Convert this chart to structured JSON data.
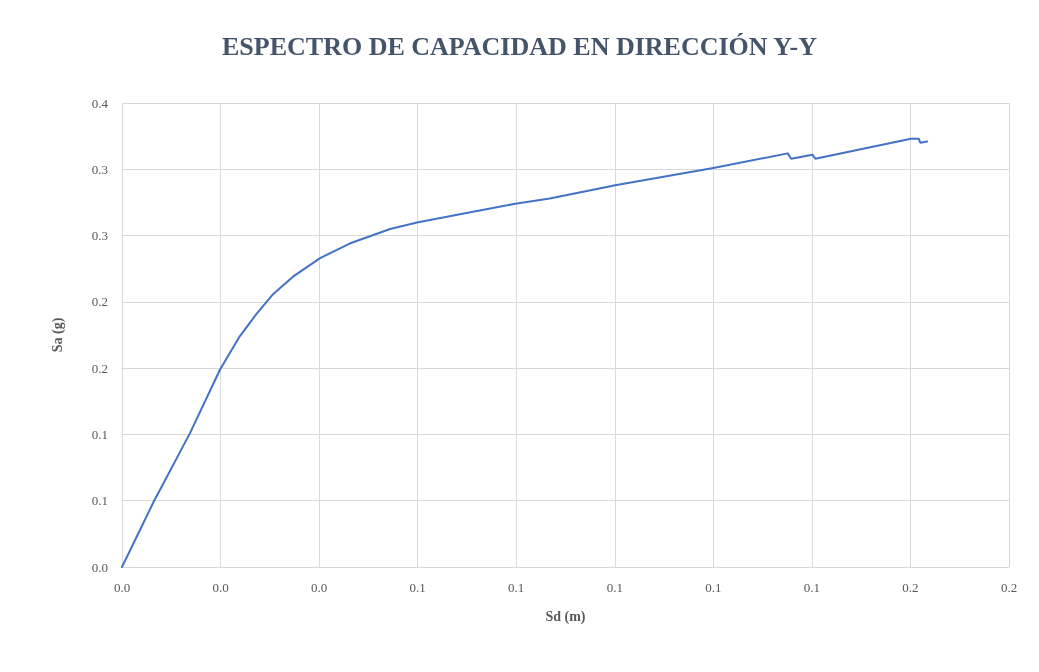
{
  "chart_data": {
    "type": "line",
    "title": "ESPECTRO DE CAPACIDAD EN DIRECCIÓN Y-Y",
    "xlabel": "Sd (m)",
    "ylabel": "Sa (g)",
    "series": [
      {
        "color": "#4472c4",
        "x": [
          0,
          0.0064,
          0.0138,
          0.0199,
          0.0239,
          0.0273,
          0.0307,
          0.0347,
          0.0402,
          0.0462,
          0.0544,
          0.0601,
          0.0699,
          0.0798,
          0.0868,
          0.1001,
          0.12,
          0.1351,
          0.1358,
          0.1401,
          0.1407,
          0.1601,
          0.1617,
          0.162,
          0.1634
        ],
        "values": [
          0,
          0.049,
          0.101,
          0.149,
          0.174,
          0.191,
          0.206,
          0.219,
          0.233,
          0.244,
          0.255,
          0.26,
          0.267,
          0.274,
          0.278,
          0.288,
          0.301,
          0.312,
          0.308,
          0.311,
          0.308,
          0.323,
          0.323,
          0.32,
          0.321
        ]
      }
    ],
    "xlim": [
      0,
      0.18
    ],
    "xticks": [
      {
        "value": 0,
        "label": "0.0"
      },
      {
        "value": 0.02,
        "label": "0.0"
      },
      {
        "value": 0.04,
        "label": "0.0"
      },
      {
        "value": 0.06,
        "label": "0.1"
      },
      {
        "value": 0.08,
        "label": "0.1"
      },
      {
        "value": 0.1,
        "label": "0.1"
      },
      {
        "value": 0.12,
        "label": "0.1"
      },
      {
        "value": 0.14,
        "label": "0.1"
      },
      {
        "value": 0.16,
        "label": "0.2"
      },
      {
        "value": 0.18,
        "label": "0.2"
      }
    ],
    "ylim": [
      0,
      0.35
    ],
    "yticks": [
      {
        "value": 0,
        "label": "0.0"
      },
      {
        "value": 0.05,
        "label": "0.1"
      },
      {
        "value": 0.1,
        "label": "0.1"
      },
      {
        "value": 0.15,
        "label": "0.2"
      },
      {
        "value": 0.2,
        "label": "0.2"
      },
      {
        "value": 0.25,
        "label": "0.3"
      },
      {
        "value": 0.3,
        "label": "0.3"
      },
      {
        "value": 0.35,
        "label": "0.4"
      }
    ],
    "grid": true,
    "marker": "none",
    "line_style": "solid"
  }
}
